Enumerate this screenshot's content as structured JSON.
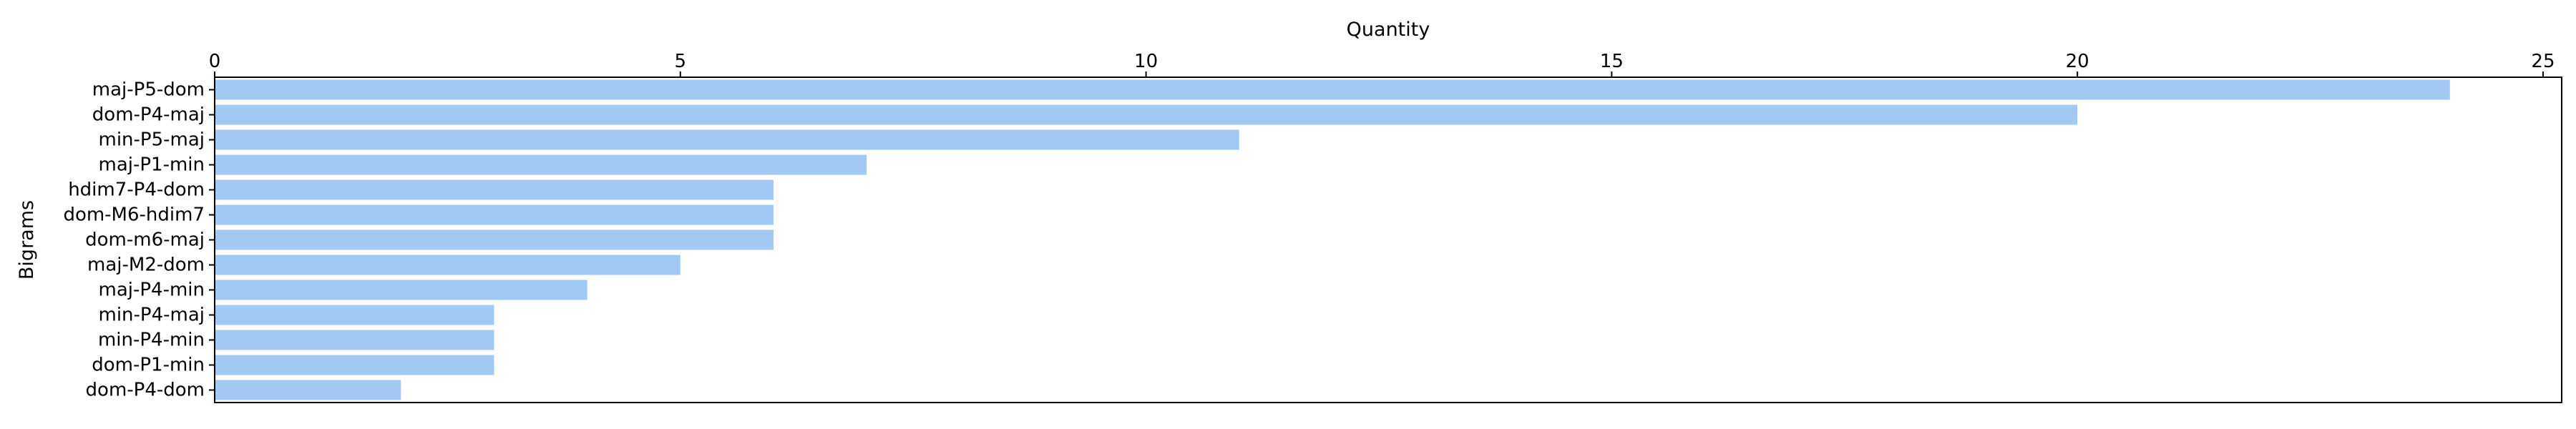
{
  "chart_data": {
    "type": "bar",
    "orientation": "horizontal",
    "title": "",
    "xlabel": "Quantity",
    "ylabel": "Bigrams",
    "xaxis_position": "top",
    "xlim": [
      0,
      25.2
    ],
    "xticks": [
      0,
      5,
      10,
      15,
      20,
      25
    ],
    "grid": false,
    "legend": "none",
    "bar_color": "#a1c9f4",
    "categories": [
      "maj-P5-dom",
      "dom-P4-maj",
      "min-P5-maj",
      "maj-P1-min",
      "hdim7-P4-dom",
      "dom-M6-hdim7",
      "dom-m6-maj",
      "maj-M2-dom",
      "maj-P4-min",
      "min-P4-maj",
      "min-P4-min",
      "dom-P1-min",
      "dom-P4-dom"
    ],
    "values": [
      24,
      20,
      11,
      7,
      6,
      6,
      6,
      5,
      4,
      3,
      3,
      3,
      2
    ]
  }
}
